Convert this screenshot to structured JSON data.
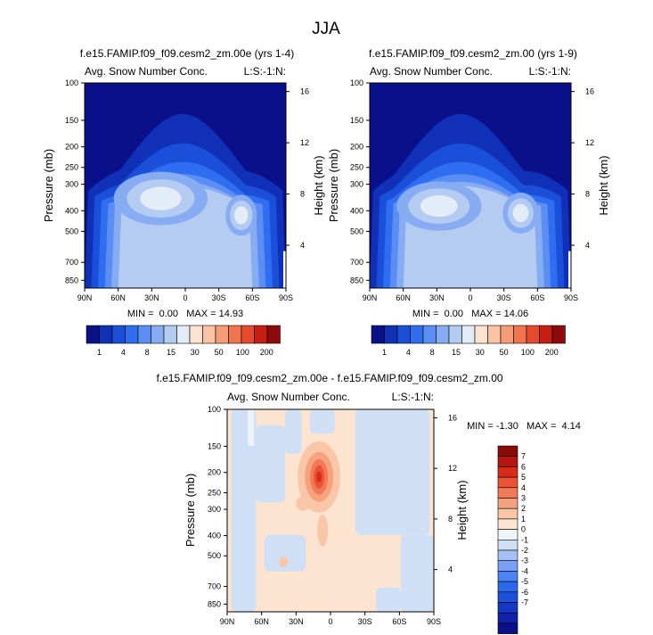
{
  "page_title": "JJA",
  "colors": {
    "frame": "#000000",
    "seq_palette": [
      "#0a0f8a",
      "#1130b8",
      "#1a4fd9",
      "#2f6ef0",
      "#5a8ef5",
      "#87acf2",
      "#b4cbf2",
      "#e3ecf7",
      "#fde3cf",
      "#f9c3a4",
      "#f59c79",
      "#f2734f",
      "#e64a2e",
      "#c81d13",
      "#8e0b0b"
    ],
    "diff_palette": [
      "#0a0f8a",
      "#0f22a8",
      "#1637c4",
      "#1d4fdb",
      "#2d67ec",
      "#4c84f3",
      "#789ff4",
      "#a4c0f3",
      "#cfdff6",
      "#eef3fa",
      "#fde4d0",
      "#f9c6a8",
      "#f5a37f",
      "#f27a58",
      "#ea5233",
      "#d92c17",
      "#b4150e",
      "#8a0a0a"
    ]
  },
  "chart_data": [
    {
      "type": "heatmap",
      "panel": "top-left",
      "title": "f.e15.FAMIP.f09_f09.cesm2_zm.00e (yrs 1-4)",
      "left_label": "Avg. Snow Number Conc.",
      "right_label": "L:S:-1:N:",
      "xlabel": "",
      "ylabel": "Pressure (mb)",
      "ylabel_right": "Height (km)",
      "x_ticks": [
        "90N",
        "60N",
        "30N",
        "0",
        "30S",
        "60S",
        "90S"
      ],
      "y_ticks": [
        "100",
        "150",
        "200",
        "250",
        "300",
        "400",
        "500",
        "700",
        "850"
      ],
      "y_ticks_right": [
        "16",
        "12",
        "8",
        "4"
      ],
      "stats": "MIN =  0.00   MAX = 14.93",
      "min": 0.0,
      "max": 14.93,
      "colorbar_labels": [
        "1",
        "4",
        "8",
        "15",
        "30",
        "50",
        "100",
        "200"
      ],
      "peaks": [
        {
          "lat": 8,
          "p": 300,
          "value": 14.93
        },
        {
          "lat": -50,
          "p": 420,
          "value": 11.5
        }
      ]
    },
    {
      "type": "heatmap",
      "panel": "top-right",
      "title": "f.e15.FAMIP.f09_f09.cesm2_zm.00 (yrs 1-9)",
      "left_label": "Avg. Snow Number Conc.",
      "right_label": "L:S:-1:N:",
      "xlabel": "",
      "ylabel": "Pressure (mb)",
      "ylabel_right": "Height (km)",
      "x_ticks": [
        "90N",
        "60N",
        "30N",
        "0",
        "30S",
        "60S",
        "90S"
      ],
      "y_ticks": [
        "100",
        "150",
        "200",
        "250",
        "300",
        "400",
        "500",
        "700",
        "850"
      ],
      "y_ticks_right": [
        "16",
        "12",
        "8",
        "4"
      ],
      "stats": "MIN =  0.00   MAX = 14.06",
      "min": 0.0,
      "max": 14.06,
      "colorbar_labels": [
        "1",
        "4",
        "8",
        "15",
        "30",
        "50",
        "100",
        "200"
      ],
      "peaks": [
        {
          "lat": 30,
          "p": 400,
          "value": 14.06
        },
        {
          "lat": -45,
          "p": 400,
          "value": 12.0
        }
      ]
    },
    {
      "type": "heatmap",
      "panel": "bottom",
      "title": "f.e15.FAMIP.f09_f09.cesm2_zm.00e - f.e15.FAMIP.f09_f09.cesm2_zm.00",
      "left_label": "Avg. Snow Number Conc.",
      "right_label": "L:S:-1:N:",
      "xlabel": "",
      "ylabel": "Pressure (mb)",
      "ylabel_right": "Height (km)",
      "x_ticks": [
        "90N",
        "60N",
        "30N",
        "0",
        "30S",
        "60S",
        "90S"
      ],
      "y_ticks": [
        "100",
        "150",
        "200",
        "250",
        "300",
        "400",
        "500",
        "700",
        "850"
      ],
      "y_ticks_right": [
        "16",
        "12",
        "8",
        "4"
      ],
      "stats": "MIN = -1.30   MAX =  4.14",
      "min": -1.3,
      "max": 4.14,
      "colorbar_labels": [
        "7",
        "6",
        "5",
        "4",
        "3",
        "2",
        "1",
        "0",
        "-1",
        "-2",
        "-3",
        "-4",
        "-5",
        "-6",
        "-7"
      ],
      "peaks": [
        {
          "lat": 10,
          "p": 210,
          "value": 4.14
        }
      ]
    }
  ]
}
